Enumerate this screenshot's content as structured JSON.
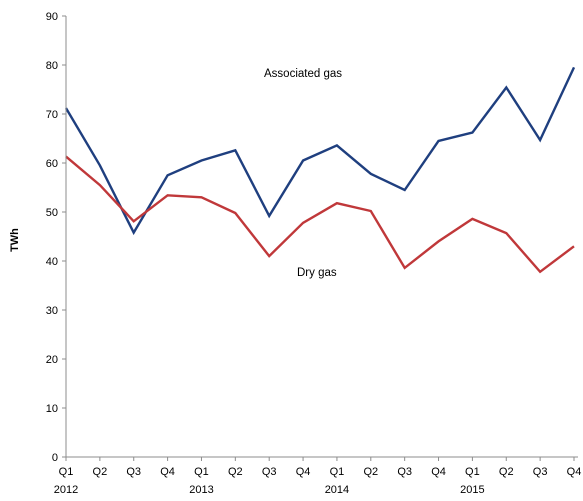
{
  "chart_data": {
    "type": "line",
    "ylabel": "TWh",
    "ylim": [
      0,
      90
    ],
    "yticks": [
      0,
      10,
      20,
      30,
      40,
      50,
      60,
      70,
      80,
      90
    ],
    "categories": [
      "Q1",
      "Q2",
      "Q3",
      "Q4",
      "Q1",
      "Q2",
      "Q3",
      "Q4",
      "Q1",
      "Q2",
      "Q3",
      "Q4",
      "Q1",
      "Q2",
      "Q3",
      "Q4"
    ],
    "years": [
      {
        "label": "2012",
        "index": 0
      },
      {
        "label": "2013",
        "index": 4
      },
      {
        "label": "2014",
        "index": 8
      },
      {
        "label": "2015",
        "index": 12
      }
    ],
    "grid": false,
    "legend": "none",
    "series": [
      {
        "name": "Associated gas",
        "color": "#1f3f7f",
        "values": [
          71.2,
          59.5,
          45.8,
          57.5,
          60.5,
          62.6,
          49.2,
          60.5,
          63.6,
          57.8,
          54.5,
          64.5,
          66.2,
          75.4,
          64.7,
          79.5
        ]
      },
      {
        "name": "Dry gas",
        "color": "#c0383a",
        "values": [
          61.3,
          55.5,
          48.1,
          53.4,
          53.0,
          49.8,
          41.0,
          47.8,
          51.8,
          50.2,
          38.6,
          44.0,
          48.6,
          45.7,
          37.8,
          43.0
        ]
      }
    ]
  }
}
